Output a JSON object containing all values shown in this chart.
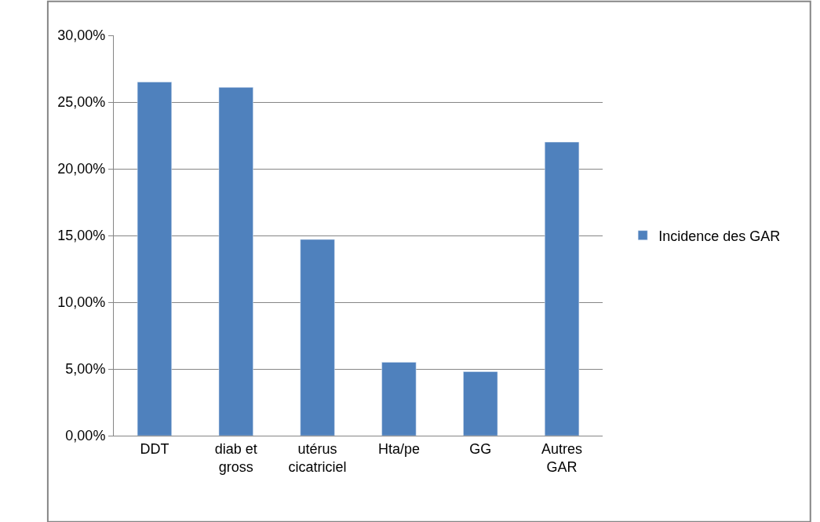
{
  "chart_data": {
    "type": "bar",
    "categories": [
      "DDT",
      "diab et\ngross",
      "utérus\ncicatriciel",
      "Hta/pe",
      "GG",
      "Autres\nGAR"
    ],
    "series": [
      {
        "name": "Incidence des GAR",
        "color": "#4f81bd",
        "values": [
          26.5,
          26.1,
          14.7,
          5.5,
          4.8,
          22.0
        ]
      }
    ],
    "ylim": [
      0,
      30
    ],
    "yticks": [
      {
        "value": 0,
        "label": "0,00%"
      },
      {
        "value": 5,
        "label": "5,00%"
      },
      {
        "value": 10,
        "label": "10,00%"
      },
      {
        "value": 15,
        "label": "15,00%"
      },
      {
        "value": 20,
        "label": "20,00%"
      },
      {
        "value": 25,
        "label": "25,00%"
      },
      {
        "value": 30,
        "label": "30,00%"
      }
    ],
    "grid": "y",
    "legend": "right"
  }
}
